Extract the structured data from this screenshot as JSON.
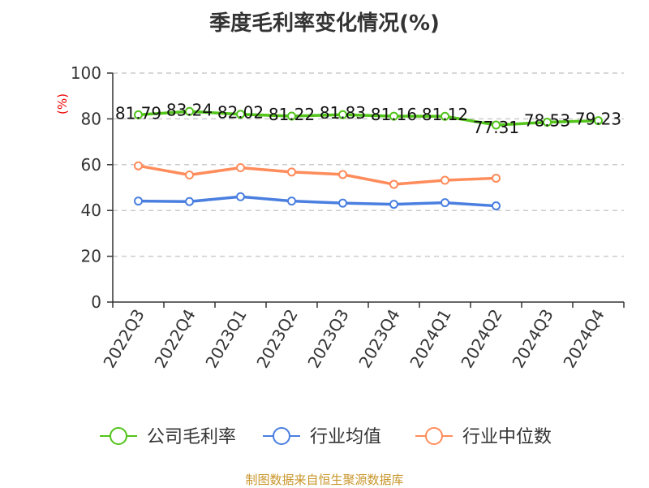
{
  "chart_data": {
    "type": "line",
    "title": "季度毛利率变化情况(%)",
    "ylabel": "(%)",
    "ylim": [
      0,
      100
    ],
    "yticks": [
      0,
      20,
      40,
      60,
      80,
      100
    ],
    "grid": true,
    "legend": "bottom",
    "categories": [
      "2022Q3",
      "2022Q4",
      "2023Q1",
      "2023Q2",
      "2023Q3",
      "2023Q4",
      "2024Q1",
      "2024Q2",
      "2024Q3",
      "2024Q4"
    ],
    "series": [
      {
        "name": "公司毛利率",
        "color": "#52c41a",
        "values": [
          81.79,
          83.24,
          82.02,
          81.22,
          81.83,
          81.16,
          81.12,
          77.31,
          78.53,
          79.23
        ],
        "labels": true
      },
      {
        "name": "行业均值",
        "color": "#4a7fe0",
        "values": [
          44.1,
          43.9,
          46.0,
          44.1,
          43.2,
          42.7,
          43.4,
          42.0,
          null,
          null
        ]
      },
      {
        "name": "行业中位数",
        "color": "#ff8c5a",
        "values": [
          59.5,
          55.5,
          58.7,
          56.8,
          55.7,
          51.4,
          53.2,
          54.1,
          null,
          null
        ]
      }
    ]
  },
  "source": "制图数据来自恒生聚源数据库"
}
